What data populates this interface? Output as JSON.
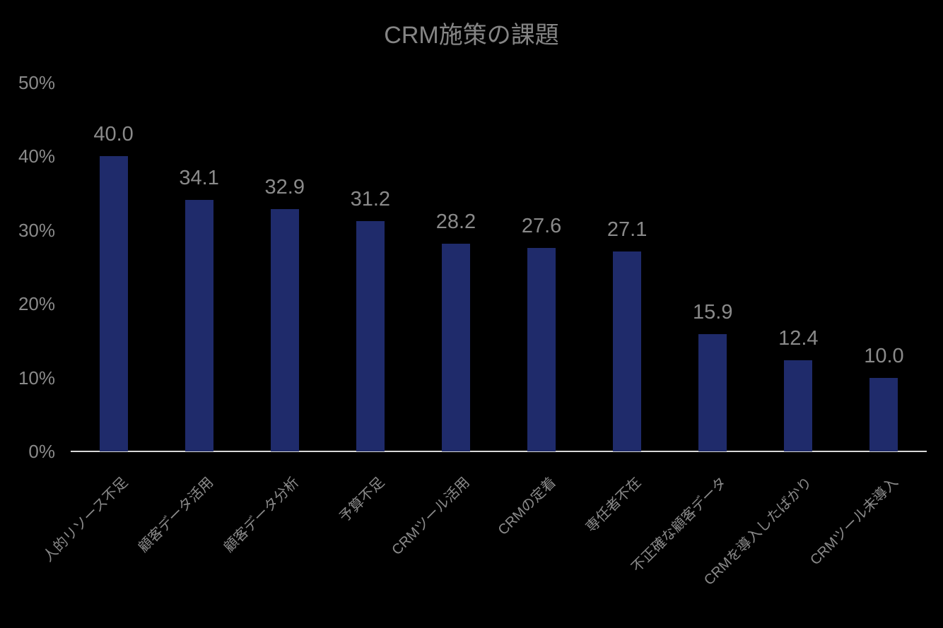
{
  "title": "CRM施策の課題",
  "colors": {
    "background": "#000000",
    "bar": "#1f2b6b",
    "text_gray": "#8a8a8a",
    "title_gray": "#858585",
    "axis_line": "#d8d8d8"
  },
  "chart_data": {
    "type": "bar",
    "title": "CRM施策の課題",
    "categories": [
      "人的リソース不足",
      "顧客データ活用",
      "顧客データ分析",
      "予算不足",
      "CRMツール活用",
      "CRMの定着",
      "専任者不在",
      "不正確な顧客データ",
      "CRMを導入したばかり",
      "CRMツール未導入"
    ],
    "values": [
      40.0,
      34.1,
      32.9,
      31.2,
      28.2,
      27.6,
      27.1,
      15.9,
      12.4,
      10.0
    ],
    "value_labels": [
      "40.0",
      "34.1",
      "32.9",
      "31.2",
      "28.2",
      "27.6",
      "27.1",
      "15.9",
      "12.4",
      "10.0"
    ],
    "xlabel": "",
    "ylabel": "",
    "ylim": [
      0,
      50
    ],
    "yticks": [
      "0%",
      "10%",
      "20%",
      "30%",
      "40%",
      "50%"
    ],
    "grid": false,
    "legend": false,
    "bar_color": "#1f2b6b",
    "label_rotation_deg": -45
  }
}
